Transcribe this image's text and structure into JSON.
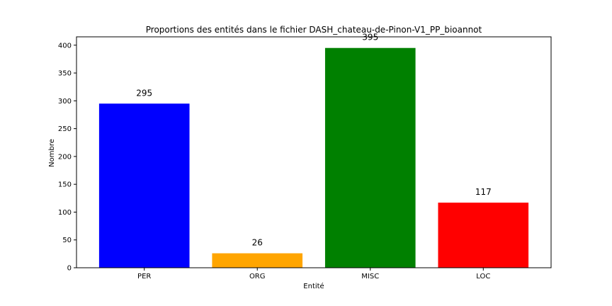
{
  "chart_data": {
    "type": "bar",
    "title": "Proportions des entités dans le fichier DASH_chateau-de-Pinon-V1_PP_bioannot",
    "xlabel": "Entité",
    "ylabel": "Nombre",
    "categories": [
      "PER",
      "ORG",
      "MISC",
      "LOC"
    ],
    "values": [
      295,
      26,
      395,
      117
    ],
    "data_labels": [
      "295",
      "26",
      "395",
      "117"
    ],
    "colors": [
      "#0000ff",
      "#ffa500",
      "#008000",
      "#ff0000"
    ],
    "ylim": [
      0,
      415
    ],
    "yticks": [
      0,
      50,
      100,
      150,
      200,
      250,
      300,
      350,
      400
    ],
    "grid": false,
    "legend": false
  }
}
